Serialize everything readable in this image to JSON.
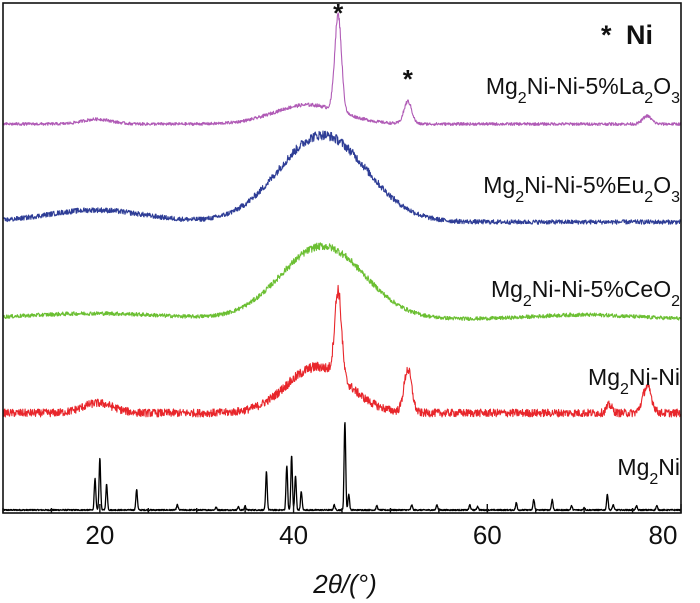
{
  "chart_data": {
    "type": "line",
    "xlabel": "2θ/(°)",
    "xlim": [
      10,
      80
    ],
    "xticks": [
      20,
      40,
      60,
      80
    ],
    "grid": false,
    "legend": {
      "symbol": "*",
      "label": "Ni",
      "placement": "top-right"
    },
    "peak_marker": "*",
    "series": [
      {
        "name": "Mg2Ni",
        "label_parts": [
          [
            "Mg",
            false
          ],
          [
            "2",
            true
          ],
          [
            "Ni",
            false
          ]
        ],
        "color": "#000000",
        "kind": "sticks",
        "baseline": 0,
        "noise": 0.25,
        "peaks": [
          [
            19.5,
            6,
            0.08
          ],
          [
            20.0,
            10,
            0.08
          ],
          [
            20.7,
            5,
            0.08
          ],
          [
            23.8,
            4,
            0.08
          ],
          [
            28.0,
            1,
            0.08
          ],
          [
            32.0,
            0.5,
            0.08
          ],
          [
            34.3,
            0.6,
            0.08
          ],
          [
            35.0,
            0.8,
            0.08
          ],
          [
            37.2,
            7.5,
            0.08
          ],
          [
            39.3,
            8.5,
            0.08
          ],
          [
            39.8,
            10.5,
            0.08
          ],
          [
            40.2,
            6.5,
            0.08
          ],
          [
            40.8,
            3.5,
            0.08
          ],
          [
            44.2,
            1,
            0.08
          ],
          [
            45.3,
            17,
            0.08
          ],
          [
            45.7,
            3,
            0.08
          ],
          [
            48.6,
            0.8,
            0.08
          ],
          [
            52.2,
            1,
            0.08
          ],
          [
            54.8,
            1,
            0.08
          ],
          [
            58.2,
            1,
            0.08
          ],
          [
            59.0,
            0.7,
            0.08
          ],
          [
            63.0,
            1.4,
            0.08
          ],
          [
            64.8,
            2,
            0.08
          ],
          [
            66.7,
            2,
            0.08
          ],
          [
            68.7,
            0.8,
            0.08
          ],
          [
            70.0,
            0.5,
            0.08
          ],
          [
            72.4,
            3,
            0.08
          ],
          [
            73.0,
            1,
            0.08
          ],
          [
            75.4,
            0.8,
            0.08
          ],
          [
            77.5,
            0.8,
            0.08
          ]
        ]
      },
      {
        "name": "Mg2Ni-Ni",
        "label_parts": [
          [
            "Mg",
            false
          ],
          [
            "2",
            true
          ],
          [
            "Ni-Ni",
            false
          ]
        ],
        "color": "#e8262b",
        "kind": "noisy",
        "baseline": 0,
        "noise": 1.2,
        "humps": [
          [
            19.8,
            1.5,
            1.6
          ],
          [
            42.5,
            7,
            3.2
          ]
        ],
        "peaks": [
          [
            44.6,
            13,
            0.35
          ],
          [
            51.8,
            6.5,
            0.4
          ],
          [
            72.6,
            1.2,
            0.3
          ],
          [
            76.5,
            4,
            0.45
          ]
        ]
      },
      {
        "name": "Mg2Ni-Ni-5%CeO2",
        "label_parts": [
          [
            "Mg",
            false
          ],
          [
            "2",
            true
          ],
          [
            "Ni-Ni-5%CeO",
            false
          ],
          [
            "2",
            true
          ]
        ],
        "color": "#6bbf32",
        "kind": "noisy",
        "baseline": 0,
        "noise": 1.3,
        "humps": [
          [
            19.5,
            2,
            7
          ],
          [
            43.0,
            26,
            4.3
          ],
          [
            70.0,
            1.5,
            5
          ]
        ],
        "peaks": []
      },
      {
        "name": "Mg2Ni-Ni-5%Eu2O3",
        "label_parts": [
          [
            "Mg",
            false
          ],
          [
            "2",
            true
          ],
          [
            "Ni-Ni-5%Eu",
            false
          ],
          [
            "2",
            true
          ],
          [
            "O",
            false
          ],
          [
            "3",
            true
          ]
        ],
        "color": "#2e3d96",
        "kind": "noisy",
        "baseline": 0,
        "noise": 1.5,
        "humps": [
          [
            19.5,
            4,
            5
          ],
          [
            43.0,
            29,
            4.5
          ]
        ],
        "peaks": []
      },
      {
        "name": "Mg2Ni-Ni-5%La2O3",
        "label_parts": [
          [
            "Mg",
            false
          ],
          [
            "2",
            true
          ],
          [
            "Ni-Ni-5%La",
            false
          ],
          [
            "2",
            true
          ],
          [
            "O",
            false
          ],
          [
            "3",
            true
          ]
        ],
        "color": "#b05bb6",
        "kind": "noisy",
        "baseline": 0,
        "noise": 0.9,
        "humps": [
          [
            19.7,
            1.5,
            1.5
          ],
          [
            41.5,
            6,
            3.5
          ]
        ],
        "peaks": [
          [
            44.6,
            30,
            0.35
          ],
          [
            51.8,
            7,
            0.4
          ],
          [
            76.5,
            2.5,
            0.45
          ]
        ]
      }
    ]
  }
}
